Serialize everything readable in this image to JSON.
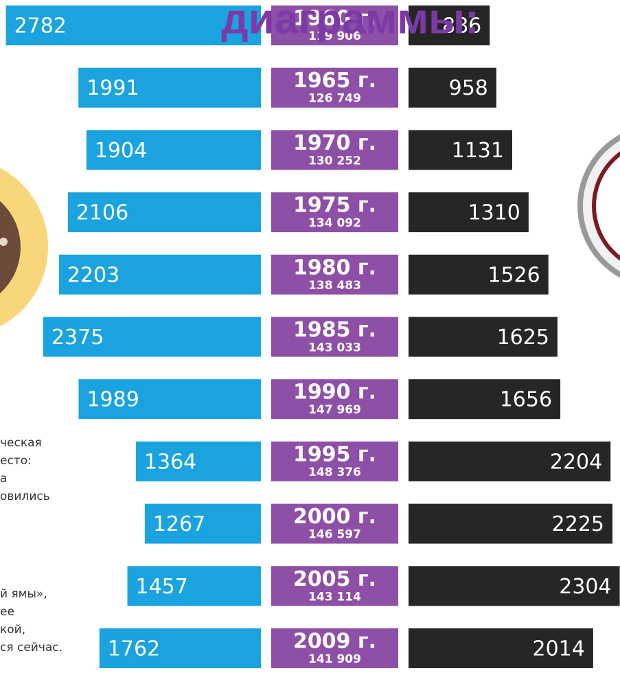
{
  "chart_data": {
    "type": "butterfly",
    "title": "диаграммы:",
    "categories": [
      "1960 г.",
      "1965 г.",
      "1970 г.",
      "1975 г.",
      "1980 г.",
      "1985 г.",
      "1990 г.",
      "1995 г.",
      "2000 г.",
      "2005 г.",
      "2009 г."
    ],
    "populations": [
      "119 906",
      "126 749",
      "130 252",
      "134 092",
      "138 483",
      "143 033",
      "147 969",
      "148 376",
      "146 597",
      "143 114",
      "141 909"
    ],
    "left_values": [
      2782,
      1991,
      1904,
      2106,
      2203,
      2375,
      1989,
      1364,
      1267,
      1457,
      1762
    ],
    "right_values": [
      886,
      958,
      1131,
      1310,
      1526,
      1625,
      1656,
      2204,
      2225,
      2304,
      2014
    ],
    "left_color": "#1aa3de",
    "right_color": "#262626",
    "middle_color": "#8e4fa6",
    "side_text": [
      "ческая",
      "есто:",
      "а",
      "овились",
      "й ямы»,",
      "ее",
      "кой,",
      "ся сейчас."
    ]
  }
}
